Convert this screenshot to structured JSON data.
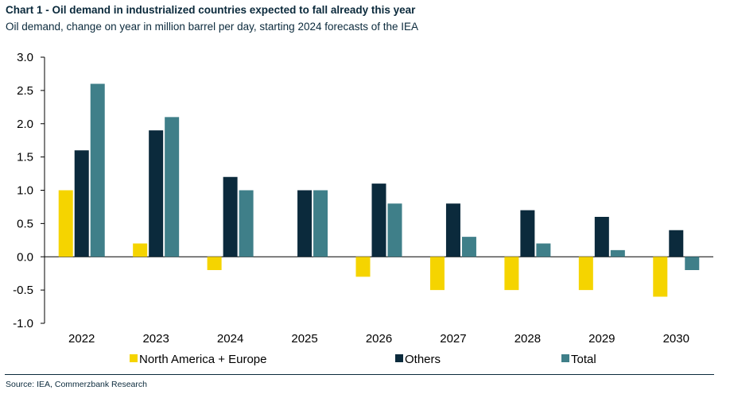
{
  "header": {
    "title": "Chart 1 - Oil demand in industrialized countries expected to fall already this year",
    "subtitle": "Oil demand, change on year in million barrel per day, starting 2024 forecasts of the IEA"
  },
  "chart_data": {
    "type": "bar",
    "categories": [
      "2022",
      "2023",
      "2024",
      "2025",
      "2026",
      "2027",
      "2028",
      "2029",
      "2030"
    ],
    "series": [
      {
        "name": "North America + Europe",
        "color": "#f5d400",
        "values": [
          1.0,
          0.2,
          -0.2,
          0.0,
          -0.3,
          -0.5,
          -0.5,
          -0.5,
          -0.6
        ]
      },
      {
        "name": "Others",
        "color": "#0b2a3c",
        "values": [
          1.6,
          1.9,
          1.2,
          1.0,
          1.1,
          0.8,
          0.7,
          0.6,
          0.4
        ]
      },
      {
        "name": "Total",
        "color": "#3f7f89",
        "values": [
          2.6,
          2.1,
          1.0,
          1.0,
          0.8,
          0.3,
          0.2,
          0.1,
          -0.2
        ]
      }
    ],
    "ylim": [
      -1.0,
      3.0
    ],
    "yticks": [
      "3.0",
      "2.5",
      "2.0",
      "1.5",
      "1.0",
      "0.5",
      "0.0",
      "-0.5",
      "-1.0"
    ],
    "grid": false,
    "legend_position": "bottom"
  },
  "footer": {
    "source": "Source: IEA, Commerzbank Research"
  }
}
